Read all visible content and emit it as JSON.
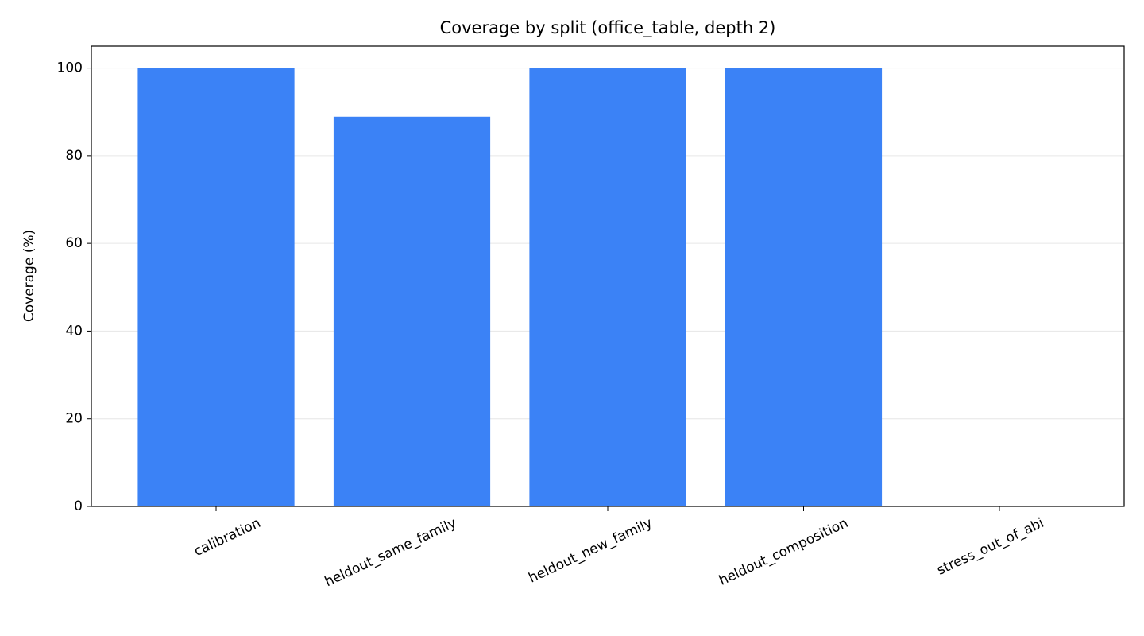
{
  "chart_data": {
    "type": "bar",
    "title": "Coverage by split (office_table, depth 2)",
    "y_label": "Coverage (%)",
    "categories": [
      "calibration",
      "heldout_same_family",
      "heldout_new_family",
      "heldout_composition",
      "stress_out_of_abi"
    ],
    "values": [
      100,
      88.9,
      100,
      100,
      0
    ],
    "color": "#3b82f6",
    "ylim": [
      0,
      105
    ],
    "yticks": [
      0,
      20,
      40,
      60,
      80,
      100
    ],
    "grid": true
  }
}
